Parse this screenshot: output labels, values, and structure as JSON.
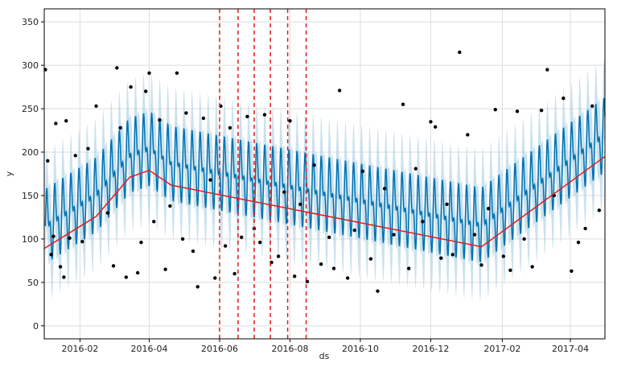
{
  "chart_data": {
    "type": "line",
    "title": "",
    "xlabel": "ds",
    "ylabel": "y",
    "xlim": [
      "2016-01-01",
      "2017-05-01"
    ],
    "ylim": [
      -15,
      365
    ],
    "grid": true,
    "x_ticks": [
      "2016-02-01",
      "2016-04-01",
      "2016-06-01",
      "2016-08-01",
      "2016-10-01",
      "2016-12-01",
      "2017-02-01",
      "2017-04-01"
    ],
    "x_tick_labels": [
      "2016-02",
      "2016-04",
      "2016-06",
      "2016-08",
      "2016-10",
      "2016-12",
      "2017-02",
      "2017-04"
    ],
    "y_ticks": [
      0,
      50,
      100,
      150,
      200,
      250,
      300,
      350
    ],
    "y_tick_labels": [
      "0",
      "50",
      "100",
      "150",
      "200",
      "250",
      "300",
      "350"
    ],
    "colors": {
      "observed": "#000000",
      "forecast": "#0072B2",
      "uncertainty": "#A6CEE3",
      "trend": "#e31a1c",
      "changepoint": "#e31a1c",
      "grid": "#dddddd"
    },
    "trend": {
      "x": [
        "2016-01-01",
        "2016-02-15",
        "2016-03-15",
        "2016-04-01",
        "2016-04-20",
        "2017-01-14",
        "2017-05-01"
      ],
      "y": [
        89,
        126,
        171,
        179,
        162,
        91,
        195
      ]
    },
    "weekly_amplitude": 55,
    "uncertainty_halfwidth": 45,
    "changepoints": [
      "2016-06-01",
      "2016-06-17",
      "2016-07-01",
      "2016-07-15",
      "2016-07-30",
      "2016-08-15"
    ],
    "observed": [
      [
        "2016-01-02",
        295
      ],
      [
        "2016-01-04",
        190
      ],
      [
        "2016-01-07",
        82
      ],
      [
        "2016-01-09",
        103
      ],
      [
        "2016-01-11",
        233
      ],
      [
        "2016-01-15",
        68
      ],
      [
        "2016-01-18",
        56
      ],
      [
        "2016-01-20",
        236
      ],
      [
        "2016-01-23",
        101
      ],
      [
        "2016-01-28",
        196
      ],
      [
        "2016-02-03",
        97
      ],
      [
        "2016-02-08",
        204
      ],
      [
        "2016-02-15",
        253
      ],
      [
        "2016-02-25",
        130
      ],
      [
        "2016-03-01",
        69
      ],
      [
        "2016-03-04",
        297
      ],
      [
        "2016-03-07",
        228
      ],
      [
        "2016-03-12",
        56
      ],
      [
        "2016-03-16",
        275
      ],
      [
        "2016-03-22",
        61
      ],
      [
        "2016-03-25",
        96
      ],
      [
        "2016-03-29",
        270
      ],
      [
        "2016-04-01",
        291
      ],
      [
        "2016-04-05",
        120
      ],
      [
        "2016-04-10",
        237
      ],
      [
        "2016-04-15",
        65
      ],
      [
        "2016-04-19",
        138
      ],
      [
        "2016-04-25",
        291
      ],
      [
        "2016-04-30",
        100
      ],
      [
        "2016-05-03",
        245
      ],
      [
        "2016-05-09",
        86
      ],
      [
        "2016-05-13",
        45
      ],
      [
        "2016-05-18",
        239
      ],
      [
        "2016-05-24",
        168
      ],
      [
        "2016-05-28",
        55
      ],
      [
        "2016-06-02",
        253
      ],
      [
        "2016-06-06",
        92
      ],
      [
        "2016-06-10",
        228
      ],
      [
        "2016-06-14",
        60
      ],
      [
        "2016-06-20",
        102
      ],
      [
        "2016-06-25",
        241
      ],
      [
        "2016-07-01",
        112
      ],
      [
        "2016-07-06",
        96
      ],
      [
        "2016-07-10",
        243
      ],
      [
        "2016-07-16",
        73
      ],
      [
        "2016-07-22",
        80
      ],
      [
        "2016-07-27",
        154
      ],
      [
        "2016-08-01",
        236
      ],
      [
        "2016-08-05",
        57
      ],
      [
        "2016-08-10",
        140
      ],
      [
        "2016-08-16",
        51
      ],
      [
        "2016-08-22",
        185
      ],
      [
        "2016-08-28",
        71
      ],
      [
        "2016-09-04",
        102
      ],
      [
        "2016-09-08",
        66
      ],
      [
        "2016-09-13",
        271
      ],
      [
        "2016-09-20",
        55
      ],
      [
        "2016-09-26",
        110
      ],
      [
        "2016-10-03",
        178
      ],
      [
        "2016-10-10",
        77
      ],
      [
        "2016-10-16",
        40
      ],
      [
        "2016-10-22",
        158
      ],
      [
        "2016-10-30",
        105
      ],
      [
        "2016-11-07",
        255
      ],
      [
        "2016-11-12",
        66
      ],
      [
        "2016-11-18",
        181
      ],
      [
        "2016-11-24",
        120
      ],
      [
        "2016-12-01",
        235
      ],
      [
        "2016-12-05",
        229
      ],
      [
        "2016-12-10",
        78
      ],
      [
        "2016-12-15",
        140
      ],
      [
        "2016-12-20",
        82
      ],
      [
        "2016-12-26",
        315
      ],
      [
        "2017-01-02",
        220
      ],
      [
        "2017-01-08",
        105
      ],
      [
        "2017-01-14",
        70
      ],
      [
        "2017-01-20",
        135
      ],
      [
        "2017-01-26",
        249
      ],
      [
        "2017-02-02",
        80
      ],
      [
        "2017-02-08",
        64
      ],
      [
        "2017-02-14",
        247
      ],
      [
        "2017-02-20",
        100
      ],
      [
        "2017-02-27",
        68
      ],
      [
        "2017-03-07",
        248
      ],
      [
        "2017-03-12",
        295
      ],
      [
        "2017-03-18",
        150
      ],
      [
        "2017-03-26",
        262
      ],
      [
        "2017-04-02",
        63
      ],
      [
        "2017-04-08",
        96
      ],
      [
        "2017-04-14",
        112
      ],
      [
        "2017-04-20",
        253
      ],
      [
        "2017-04-26",
        133
      ]
    ]
  }
}
